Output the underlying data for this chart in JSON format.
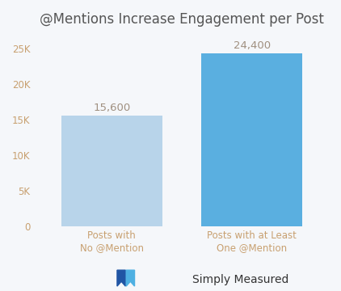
{
  "title": "@Mentions Increase Engagement per Post",
  "categories": [
    "Posts with\nNo @Mention",
    "Posts with at Least\nOne @Mention"
  ],
  "values": [
    15600,
    24400
  ],
  "value_labels": [
    "15,600",
    "24,400"
  ],
  "bar_colors": [
    "#b8d4ea",
    "#5aafe0"
  ],
  "ylim": [
    0,
    27000
  ],
  "yticks": [
    0,
    5000,
    10000,
    15000,
    20000,
    25000
  ],
  "ytick_labels": [
    "0",
    "5K",
    "10K",
    "15K",
    "20K",
    "25K"
  ],
  "title_color": "#555555",
  "label_color": "#c8a070",
  "value_color": "#a09080",
  "background_color": "#f5f7fa",
  "title_fontsize": 12,
  "label_fontsize": 8.5,
  "value_fontsize": 9.5,
  "ytick_fontsize": 8.5,
  "footer_text": "Simply Measured",
  "footer_fontsize": 10,
  "footer_color": "#333333"
}
